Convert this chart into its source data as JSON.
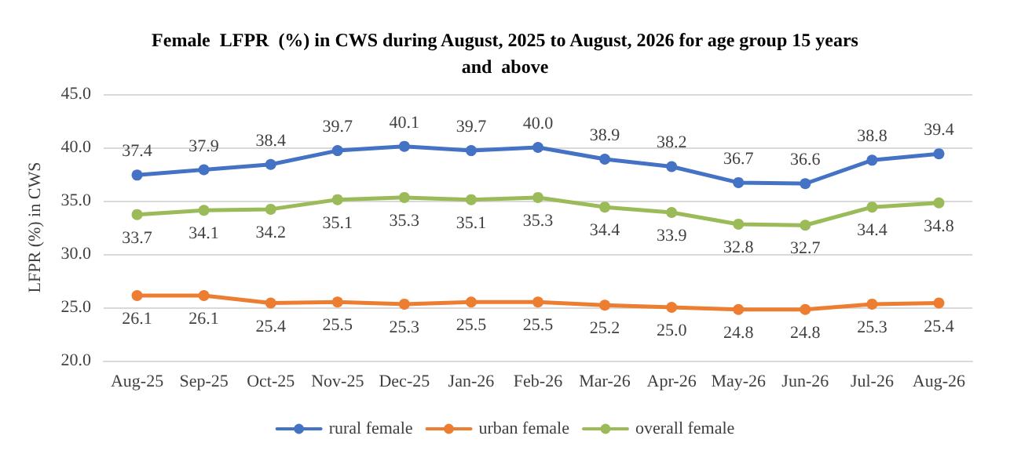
{
  "chart_data": {
    "type": "line",
    "title": "Female  LFPR  (%) in CWS during August, 2025 to August, 2026 for age group 15 years\nand  above",
    "ylabel": "LFPR (%) in CWS",
    "categories": [
      "Aug-25",
      "Sep-25",
      "Oct-25",
      "Nov-25",
      "Dec-25",
      "Jan-26",
      "Feb-26",
      "Mar-26",
      "Apr-26",
      "May-26",
      "Jun-26",
      "Jul-26",
      "Aug-26"
    ],
    "series": [
      {
        "name": "rural female",
        "color": "#4472c4",
        "values": [
          37.4,
          37.9,
          38.4,
          39.7,
          40.1,
          39.7,
          40.0,
          38.9,
          38.2,
          36.7,
          36.6,
          38.8,
          39.4
        ],
        "value_labels": [
          "37.4",
          "37.9",
          "38.4",
          "39.7",
          "40.1",
          "39.7",
          "40.0",
          "38.9",
          "38.2",
          "36.7",
          "36.6",
          "38.8",
          "39.4"
        ]
      },
      {
        "name": "urban female",
        "color": "#ed7d31",
        "values": [
          26.1,
          26.1,
          25.4,
          25.5,
          25.3,
          25.5,
          25.5,
          25.2,
          25.0,
          24.8,
          24.8,
          25.3,
          25.4
        ],
        "value_labels": [
          "26.1",
          "26.1",
          "25.4",
          "25.5",
          "25.3",
          "25.5",
          "25.5",
          "25.2",
          "25.0",
          "24.8",
          "24.8",
          "25.3",
          "25.4"
        ]
      },
      {
        "name": "overall female",
        "color": "#9bbb59",
        "values": [
          33.7,
          34.1,
          34.2,
          35.1,
          35.3,
          35.1,
          35.3,
          34.4,
          33.9,
          32.8,
          32.7,
          34.4,
          34.8
        ],
        "value_labels": [
          "33.7",
          "34.1",
          "34.2",
          "35.1",
          "35.3",
          "35.1",
          "35.3",
          "34.4",
          "33.9",
          "32.8",
          "32.7",
          "34.4",
          "34.8"
        ]
      }
    ],
    "ylim": [
      20,
      45
    ],
    "yticks": [
      {
        "value": 20,
        "label": "20.0"
      },
      {
        "value": 25,
        "label": "25.0"
      },
      {
        "value": 30,
        "label": "30.0"
      },
      {
        "value": 35,
        "label": "35.0"
      },
      {
        "value": 40,
        "label": "40.0"
      },
      {
        "value": 45,
        "label": "45.0"
      }
    ],
    "grid": "y",
    "legend": "bottom",
    "marker": "circle",
    "line_style": "solid"
  }
}
